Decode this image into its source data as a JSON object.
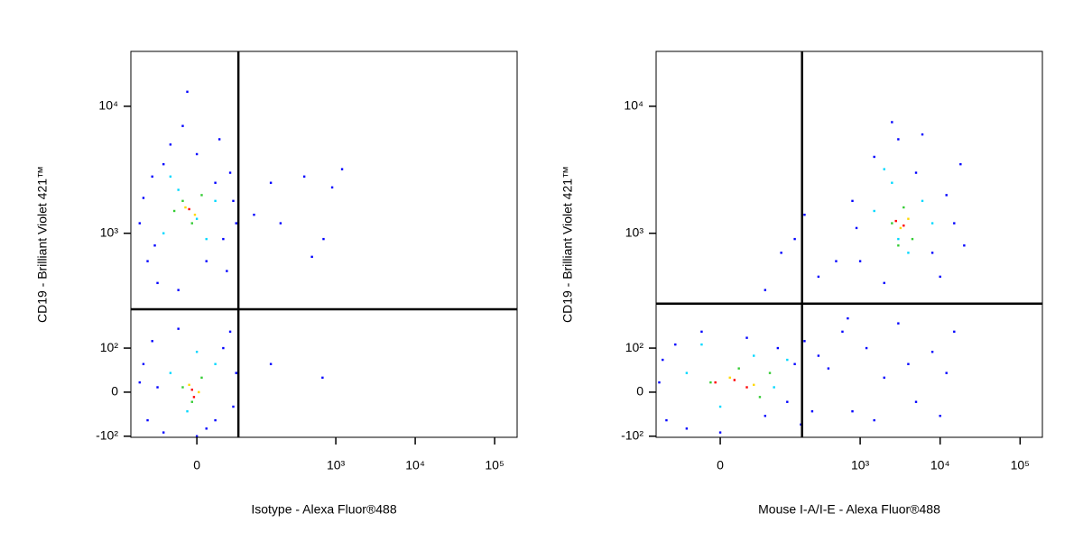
{
  "chart_data": [
    {
      "type": "scatter",
      "x_label": "Isotype - Alexa Fluor®488",
      "y_label": "CD19 - Brilliant Violet 421™",
      "xscale": "biexponential",
      "yscale": "biexponential",
      "xlim": [
        -118,
        192000
      ],
      "ylim": [
        -103,
        27000
      ],
      "xticks": [
        0,
        {
          "value": 1000,
          "label": "10³"
        },
        {
          "value": 10000,
          "label": "10⁴"
        },
        {
          "value": 100000,
          "label": "10⁵"
        }
      ],
      "yticks": [
        {
          "value": -100,
          "label": "-10²"
        },
        0,
        {
          "value": 100,
          "label": "10²"
        },
        {
          "value": 1000,
          "label": "10³"
        },
        {
          "value": 10000,
          "label": "10⁴"
        }
      ],
      "gates": {
        "x": 54,
        "y": 241
      },
      "series": [
        {
          "color": "#0000ff",
          "x": [
            -90,
            -70,
            -60,
            -50,
            -40,
            -30,
            -20,
            0,
            10,
            20,
            30,
            40,
            45,
            50,
            -80,
            35,
            -55,
            25,
            -15,
            -10,
            -90,
            -70,
            -60,
            -40,
            -20,
            10,
            30,
            45,
            50,
            -80,
            20,
            40,
            -50,
            0,
            90,
            150,
            200,
            400,
            700,
            900,
            1200,
            500,
            150,
            680
          ],
          "y": [
            1200,
            600,
            2800,
            400,
            3500,
            5000,
            350,
            4200,
            600,
            2500,
            900,
            3000,
            1800,
            1200,
            1900,
            500,
            800,
            5500,
            7000,
            13000,
            20,
            -60,
            120,
            -90,
            160,
            -80,
            100,
            -30,
            40,
            60,
            -60,
            150,
            10,
            -100,
            1400,
            2500,
            1200,
            2800,
            900,
            2300,
            3200,
            650,
            60,
            30
          ]
        },
        {
          "color": "#00d8ff",
          "x": [
            -40,
            -20,
            0,
            20,
            -30,
            10,
            -30,
            -10,
            20,
            0
          ],
          "y": [
            1000,
            2200,
            1300,
            1800,
            2800,
            900,
            40,
            -40,
            60,
            90
          ]
        },
        {
          "color": "#33cc33",
          "x": [
            -25,
            -5,
            5,
            -15,
            -15,
            5,
            -5
          ],
          "y": [
            1500,
            1200,
            2000,
            1800,
            10,
            30,
            -20
          ]
        },
        {
          "color": "#ffd800",
          "x": [
            -12,
            -2,
            -8,
            2
          ],
          "y": [
            1600,
            1400,
            15,
            0
          ]
        },
        {
          "color": "#ff0000",
          "x": [
            -8,
            -5,
            -3
          ],
          "y": [
            1550,
            5,
            -10
          ]
        }
      ]
    },
    {
      "type": "scatter",
      "x_label": "Mouse I-A/I-E - Alexa Fluor®488",
      "y_label": "CD19 - Brilliant Violet 421™",
      "xscale": "biexponential",
      "yscale": "biexponential",
      "xlim": [
        -110,
        190000
      ],
      "ylim": [
        -103,
        27000
      ],
      "xticks": [
        0,
        {
          "value": 1000,
          "label": "10³"
        },
        {
          "value": 10000,
          "label": "10⁴"
        },
        {
          "value": 100000,
          "label": "10⁵"
        }
      ],
      "yticks": [
        {
          "value": -100,
          "label": "-10²"
        },
        0,
        {
          "value": 100,
          "label": "10²"
        },
        {
          "value": 1000,
          "label": "10³"
        },
        {
          "value": 10000,
          "label": "10⁴"
        }
      ],
      "gates": {
        "x": 186,
        "y": 269
      },
      "series": [
        {
          "color": "#0000ff",
          "x": [
            -100,
            -80,
            -60,
            -40,
            -20,
            0,
            30,
            60,
            90,
            120,
            150,
            200,
            250,
            300,
            -90,
            180,
            400,
            600,
            800,
            1200,
            2000,
            3000,
            5000,
            8000,
            12000,
            15000,
            1500,
            700,
            4000,
            10000,
            100,
            200,
            300,
            150,
            500,
            60,
            800,
            1000,
            1500,
            2000,
            3000,
            5000,
            8000,
            12000,
            15000,
            18000,
            6000,
            2500,
            10000,
            900,
            20000
          ],
          "y": [
            20,
            -60,
            110,
            -80,
            150,
            -90,
            130,
            -50,
            100,
            -20,
            60,
            120,
            -40,
            80,
            70,
            -70,
            50,
            150,
            -40,
            100,
            30,
            180,
            -20,
            90,
            40,
            150,
            -60,
            200,
            60,
            -50,
            700,
            1400,
            450,
            900,
            600,
            350,
            1800,
            600,
            4000,
            400,
            5500,
            3000,
            700,
            2000,
            1200,
            3500,
            6000,
            7500,
            450,
            1100,
            800
          ]
        },
        {
          "color": "#00d8ff",
          "x": [
            -40,
            0,
            40,
            80,
            120,
            -20,
            1500,
            2500,
            4000,
            6000,
            8000,
            3000,
            2000
          ],
          "y": [
            40,
            -30,
            80,
            10,
            70,
            110,
            1500,
            2500,
            700,
            1800,
            1200,
            900,
            3200
          ]
        },
        {
          "color": "#33cc33",
          "x": [
            -10,
            20,
            50,
            70,
            2500,
            3500,
            4500,
            3000
          ],
          "y": [
            20,
            50,
            -10,
            40,
            1200,
            1600,
            900,
            800
          ]
        },
        {
          "color": "#ffd800",
          "x": [
            10,
            40,
            3200,
            4000
          ],
          "y": [
            30,
            15,
            1100,
            1300
          ]
        },
        {
          "color": "#ff0000",
          "x": [
            15,
            30,
            -5,
            3500,
            2800
          ],
          "y": [
            25,
            10,
            20,
            1150,
            1250
          ]
        }
      ]
    }
  ]
}
